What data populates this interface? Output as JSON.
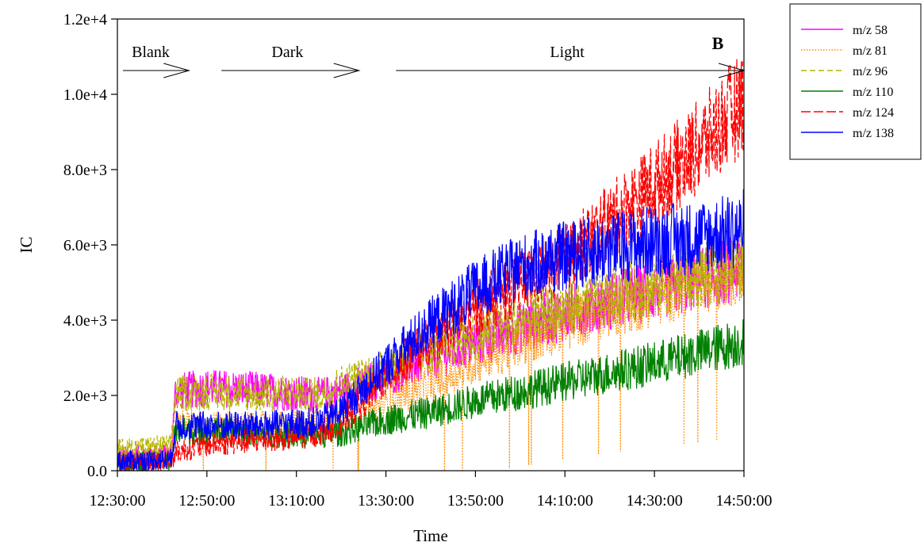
{
  "chart_data": {
    "type": "line",
    "title": "",
    "panel_label": "B",
    "xlabel": "Time",
    "ylabel": "IC",
    "xlim": [
      "12:30:00",
      "14:50:00"
    ],
    "ylim": [
      0,
      12000
    ],
    "x_ticks": [
      "12:30:00",
      "12:50:00",
      "13:10:00",
      "13:30:00",
      "13:50:00",
      "14:10:00",
      "14:30:00",
      "14:50:00"
    ],
    "y_ticks": [
      {
        "value": 0,
        "label": "0.0"
      },
      {
        "value": 2000,
        "label": "2.0e+3"
      },
      {
        "value": 4000,
        "label": "4.0e+3"
      },
      {
        "value": 6000,
        "label": "6.0e+3"
      },
      {
        "value": 8000,
        "label": "8.0e+3"
      },
      {
        "value": 10000,
        "label": "1.0e+4"
      },
      {
        "value": 12000,
        "label": "1.2e+4"
      }
    ],
    "grid": false,
    "legend_position": "right",
    "phases": [
      {
        "label": "Blank",
        "start": "12:30:00",
        "end": "12:46:00"
      },
      {
        "label": "Dark",
        "start": "12:52:00",
        "end": "13:24:00"
      },
      {
        "label": "Light",
        "start": "13:31:00",
        "end": "14:50:00"
      }
    ],
    "x": [
      "12:30:00",
      "12:42:00",
      "12:43:00",
      "12:50:00",
      "13:00:00",
      "13:10:00",
      "13:15:00",
      "13:20:00",
      "13:30:00",
      "13:40:00",
      "13:50:00",
      "14:00:00",
      "14:10:00",
      "14:20:00",
      "14:30:00",
      "14:40:00",
      "14:49:00",
      "14:50:00"
    ],
    "series": [
      {
        "name": "m/z 58",
        "color": "#ff00ff",
        "dash": "solid",
        "values": [
          350,
          450,
          2100,
          2200,
          2150,
          2050,
          2000,
          2100,
          2500,
          3000,
          3400,
          3800,
          4200,
          4500,
          4800,
          5100,
          5400,
          5500
        ]
      },
      {
        "name": "m/z 81",
        "color": "#ff8c00",
        "dash": "dotted",
        "values": [
          300,
          350,
          1250,
          1200,
          1200,
          1200,
          1250,
          1350,
          1800,
          2300,
          2900,
          3400,
          3900,
          4300,
          4600,
          5000,
          5300,
          5400
        ]
      },
      {
        "name": "m/z 96",
        "color": "#b5b500",
        "dash": "dashed",
        "values": [
          550,
          650,
          2050,
          2100,
          2050,
          2050,
          2000,
          2300,
          2700,
          3200,
          3600,
          4000,
          4300,
          4600,
          4900,
          5200,
          5400,
          5500
        ]
      },
      {
        "name": "m/z 110",
        "color": "#008000",
        "dash": "solid",
        "values": [
          200,
          250,
          1050,
          1050,
          1000,
          950,
          950,
          1000,
          1350,
          1550,
          1850,
          2100,
          2350,
          2600,
          2850,
          3150,
          3400,
          3500
        ]
      },
      {
        "name": "m/z 124",
        "color": "#ff0000",
        "dash": "longdash",
        "values": [
          200,
          250,
          500,
          700,
          800,
          900,
          1000,
          1300,
          2500,
          3500,
          4300,
          5000,
          5600,
          6600,
          7600,
          8600,
          9700,
          10000
        ]
      },
      {
        "name": "m/z 138",
        "color": "#0000ff",
        "dash": "solid",
        "values": [
          250,
          300,
          1200,
          1200,
          1200,
          1250,
          1300,
          1600,
          2800,
          3900,
          4800,
          5400,
          5700,
          5900,
          6100,
          6200,
          6400,
          6500
        ]
      }
    ]
  }
}
